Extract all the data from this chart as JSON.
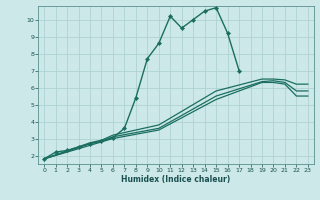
{
  "xlabel": "Humidex (Indice chaleur)",
  "bg_color": "#cce8e8",
  "grid_color": "#aacece",
  "line_color": "#1a6e60",
  "xlim": [
    -0.5,
    23.5
  ],
  "ylim": [
    1.5,
    10.8
  ],
  "xticks": [
    0,
    1,
    2,
    3,
    4,
    5,
    6,
    7,
    8,
    9,
    10,
    11,
    12,
    13,
    14,
    15,
    16,
    17,
    18,
    19,
    20,
    21,
    22,
    23
  ],
  "yticks": [
    2,
    3,
    4,
    5,
    6,
    7,
    8,
    9,
    10
  ],
  "main_x": [
    0,
    1,
    2,
    3,
    4,
    5,
    6,
    7,
    8,
    9,
    10,
    11,
    12,
    13,
    14,
    15,
    16,
    17
  ],
  "main_y": [
    1.8,
    2.2,
    2.3,
    2.5,
    2.7,
    2.85,
    3.05,
    3.6,
    5.4,
    7.7,
    8.6,
    10.2,
    9.5,
    10.0,
    10.5,
    10.7,
    9.2,
    7.0
  ],
  "ref1_x": [
    0,
    4,
    5,
    6,
    10,
    15,
    19,
    20,
    21,
    22,
    23
  ],
  "ref1_y": [
    1.8,
    2.6,
    2.8,
    3.0,
    3.5,
    5.3,
    6.3,
    6.3,
    6.2,
    5.5,
    5.5
  ],
  "ref2_x": [
    0,
    4,
    5,
    6,
    10,
    15,
    19,
    20,
    21,
    22,
    23
  ],
  "ref2_y": [
    1.8,
    2.7,
    2.85,
    3.1,
    3.6,
    5.5,
    6.35,
    6.4,
    6.3,
    5.8,
    5.8
  ],
  "ref3_x": [
    0,
    4,
    5,
    6,
    10,
    15,
    19,
    20,
    21,
    22,
    23
  ],
  "ref3_y": [
    1.8,
    2.75,
    2.9,
    3.2,
    3.8,
    5.8,
    6.5,
    6.5,
    6.45,
    6.2,
    6.2
  ]
}
